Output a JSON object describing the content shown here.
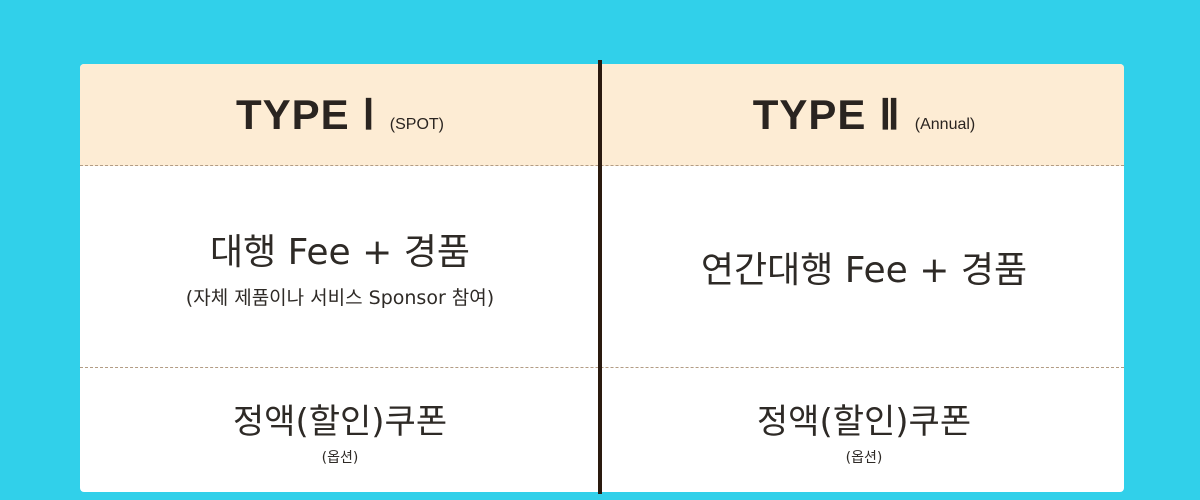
{
  "type1": {
    "title": "TYPE Ⅰ",
    "subtitle": "(SPOT)",
    "main": "대행 Fee + 경품",
    "note": "(자체 제품이나 서비스 Sponsor 참여)",
    "coupon": "정액(할인)쿠폰",
    "option": "(옵션)"
  },
  "type2": {
    "title": "TYPE Ⅱ",
    "subtitle": "(Annual)",
    "main": "연간대행 Fee + 경품",
    "coupon": "정액(할인)쿠폰",
    "option": "(옵션)"
  },
  "colors": {
    "background": "#31d0ea",
    "header": "#fdecd4",
    "divider": "#2a1a0f",
    "text": "#2e2a26"
  }
}
